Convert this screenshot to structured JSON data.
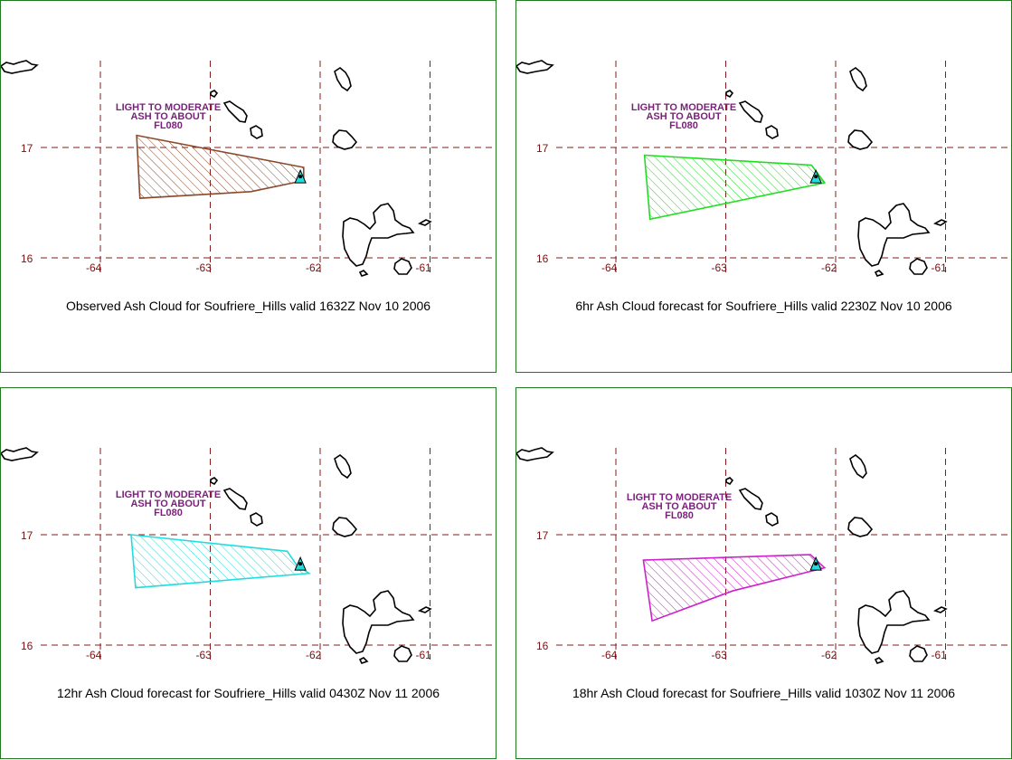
{
  "panels": [
    {
      "caption": "Observed Ash Cloud for Soufriere_Hills valid 1632Z Nov 10 2006",
      "label_lines": [
        "LIGHT TO MODERATE",
        "ASH TO ABOUT",
        "FL080"
      ],
      "outline_color": "#8b4a2b",
      "polygon": [
        [
          -63.67,
          17.11
        ],
        [
          -62.15,
          16.82
        ],
        [
          -62.15,
          16.7
        ],
        [
          -62.63,
          16.6
        ],
        [
          -63.64,
          16.54
        ]
      ]
    },
    {
      "caption": "6hr Ash Cloud forecast for Soufriere_Hills valid 2230Z Nov 10 2006",
      "label_lines": [
        "LIGHT TO MODERATE",
        "ASH TO ABOUT",
        "FL080"
      ],
      "outline_color": "#22dd22",
      "polygon": [
        [
          -63.74,
          16.93
        ],
        [
          -62.22,
          16.84
        ],
        [
          -62.1,
          16.68
        ],
        [
          -63.69,
          16.35
        ]
      ]
    },
    {
      "caption": "12hr Ash Cloud forecast for Soufriere_Hills valid 0430Z Nov 11 2006",
      "label_lines": [
        "LIGHT TO MODERATE",
        "ASH TO ABOUT",
        "FL080"
      ],
      "outline_color": "#22dddd",
      "polygon": [
        [
          -63.72,
          17.0
        ],
        [
          -62.3,
          16.85
        ],
        [
          -62.21,
          16.72
        ],
        [
          -62.1,
          16.65
        ],
        [
          -63.68,
          16.52
        ]
      ]
    },
    {
      "caption": "18hr Ash Cloud forecast for Soufriere_Hills valid 1030Z Nov 11 2006",
      "label_lines": [
        "LIGHT TO MODERATE",
        "ASH TO ABOUT",
        "FL080"
      ],
      "outline_color": "#cc22cc",
      "polygon": [
        [
          -63.75,
          16.77
        ],
        [
          -62.23,
          16.82
        ],
        [
          -62.1,
          16.7
        ],
        [
          -62.94,
          16.49
        ],
        [
          -63.67,
          16.22
        ]
      ]
    }
  ],
  "map": {
    "lon_labels": [
      "-64",
      "-63",
      "-62",
      "-61"
    ],
    "lat_labels": [
      "17",
      "16"
    ],
    "lon_lines": [
      -64,
      -63,
      -62,
      -61
    ],
    "lat_lines": [
      17,
      16
    ],
    "grid_color": "#8b1a1a",
    "volcano_color": "#22dddd"
  }
}
